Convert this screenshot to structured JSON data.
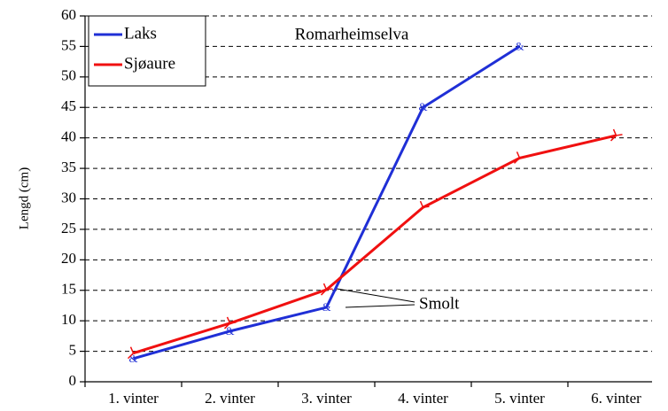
{
  "chart_data": {
    "type": "line",
    "title": "Romarheimselva",
    "y_label": "Lengd (cm)",
    "annotation": "Smolt",
    "categories": [
      "1. vinter",
      "2. vinter",
      "3. vinter",
      "4. vinter",
      "5. vinter",
      "6. vinter"
    ],
    "series": [
      {
        "name": "Laks",
        "color": "#1f2fd6",
        "values": [
          3.8,
          8.3,
          12.2,
          45,
          55,
          null
        ]
      },
      {
        "name": "Sjøaure",
        "color": "#f01010",
        "values": [
          4.7,
          9.6,
          15.1,
          28.6,
          36.7,
          40.4
        ]
      }
    ],
    "ylim": [
      0,
      60
    ],
    "yticks": [
      0,
      5,
      10,
      15,
      20,
      25,
      30,
      35,
      40,
      45,
      50,
      55,
      60
    ],
    "grid": true,
    "legend": "top-left"
  }
}
